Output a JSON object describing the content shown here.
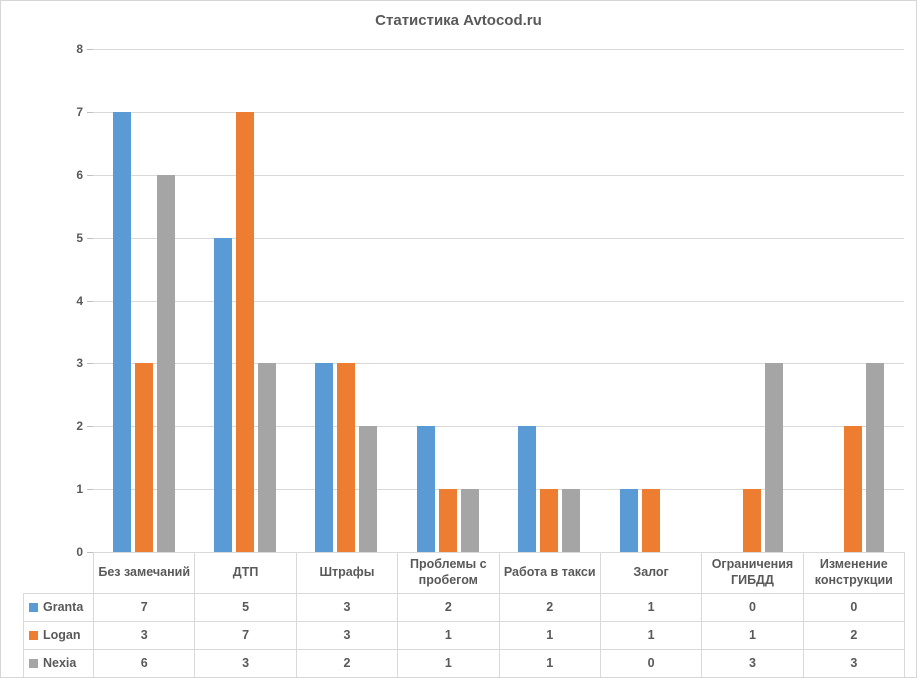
{
  "title": "Статистика Avtocod.ru",
  "chart_data": {
    "type": "bar",
    "title": "Статистика Avtocod.ru",
    "categories": [
      "Без замечаний",
      "ДТП",
      "Штрафы",
      "Проблемы с пробегом",
      "Работа в такси",
      "Залог",
      "Ограничения ГИБДД",
      "Изменение конструкции"
    ],
    "series": [
      {
        "name": "Granta",
        "color": "#5B9BD5",
        "values": [
          7,
          5,
          3,
          2,
          2,
          1,
          0,
          0
        ]
      },
      {
        "name": "Logan",
        "color": "#ED7D31",
        "values": [
          3,
          7,
          3,
          1,
          1,
          1,
          1,
          2
        ]
      },
      {
        "name": "Nexia",
        "color": "#A5A5A5",
        "values": [
          6,
          3,
          2,
          1,
          1,
          0,
          3,
          3
        ]
      }
    ],
    "ylim": [
      0,
      8
    ],
    "ytick_step": 1,
    "yticks": [
      0,
      1,
      2,
      3,
      4,
      5,
      6,
      7,
      8
    ],
    "grid": "horizontal",
    "legend_position": "data-table-left",
    "data_table_shown": true
  },
  "colors": {
    "text": "#595959",
    "gridline": "#D9D9D9",
    "axis_line": "#BFBFBF",
    "table_border": "#D9D9D9",
    "background": "#FFFFFF"
  }
}
